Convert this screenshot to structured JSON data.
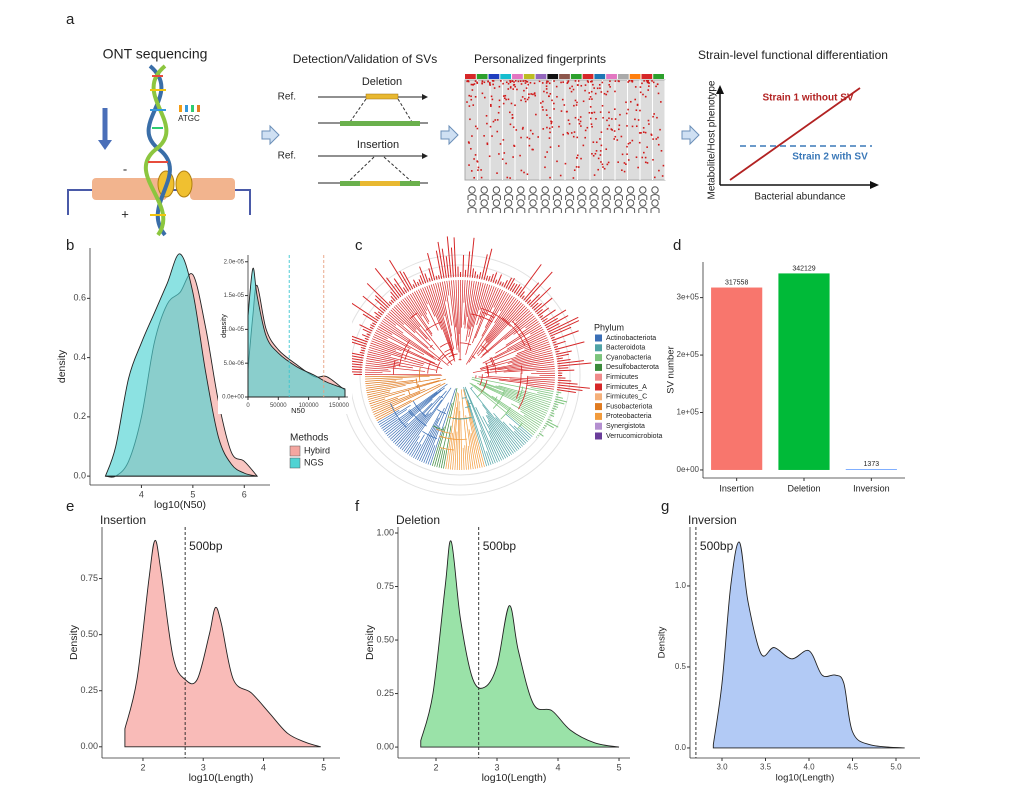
{
  "figure": {
    "panel_labels": [
      "a",
      "b",
      "c",
      "d",
      "e",
      "f",
      "g"
    ],
    "ont_title": "ONT sequencing",
    "atgc": "ATGC",
    "minus": "-",
    "plus": "+",
    "sv_title": "Detection/Validation of SVs",
    "deletion": "Deletion",
    "insertion": "Insertion",
    "ref": "Ref.",
    "fp_title": "Personalized fingerprints",
    "strain_title": "Strain-level functional differentiation",
    "y_axis": "Metabolite/Host phenotype",
    "x_axis": "Bacterial abundance",
    "strain1": "Strain 1 without SV",
    "strain2": "Strain 2 with SV",
    "phylum_title": "Phylum",
    "phyla": [
      {
        "name": "Actinobacteriota",
        "color": "#3b6fb6"
      },
      {
        "name": "Bacteroidota",
        "color": "#4fa3a5"
      },
      {
        "name": "Cyanobacteria",
        "color": "#7cc47c"
      },
      {
        "name": "Desulfobacterota",
        "color": "#3b8a3b"
      },
      {
        "name": "Firmicutes",
        "color": "#f08a8a"
      },
      {
        "name": "Firmicutes_A",
        "color": "#d62728"
      },
      {
        "name": "Firmicutes_C",
        "color": "#f5b07a"
      },
      {
        "name": "Fusobacteriota",
        "color": "#e07b20"
      },
      {
        "name": "Proteobacteria",
        "color": "#f29b3c"
      },
      {
        "name": "Synergistota",
        "color": "#b48fd0"
      },
      {
        "name": "Verrucomicrobiota",
        "color": "#6a3d9a"
      }
    ]
  },
  "chart_data": [
    {
      "type": "area",
      "xlabel": "log10(N50)",
      "ylabel": "density",
      "legend_title": "Methods",
      "xlim": [
        3.0,
        6.5
      ],
      "ylim": [
        -0.03,
        0.77
      ],
      "xticks": [
        4,
        5,
        6
      ],
      "yticks": [
        {
          "value": 0,
          "label": "0.0"
        },
        {
          "value": 0.2,
          "label": "0.2"
        },
        {
          "value": 0.4,
          "label": "0.4"
        },
        {
          "value": 0.6,
          "label": "0.6"
        }
      ],
      "x": [
        3.3,
        3.5,
        3.75,
        4.0,
        4.25,
        4.5,
        4.75,
        5.0,
        5.25,
        5.5,
        5.75,
        6.0,
        6.25
      ],
      "series": [
        {
          "name": "Hybird",
          "color": "#f4a6a0",
          "values": [
            0,
            0,
            0.05,
            0.2,
            0.45,
            0.58,
            0.62,
            0.68,
            0.5,
            0.25,
            0.08,
            0.05,
            0
          ]
        },
        {
          "name": "NGS",
          "color": "#4fd3d3",
          "values": [
            0,
            0.1,
            0.33,
            0.45,
            0.55,
            0.65,
            0.75,
            0.62,
            0.35,
            0.13,
            0.04,
            0.01,
            0
          ]
        }
      ]
    },
    {
      "type": "area",
      "xlabel": "N50",
      "ylabel": "density",
      "xlim": [
        0,
        165000
      ],
      "ylim": [
        0,
        2.1e-05
      ],
      "xticks": [
        0,
        50000,
        100000,
        150000
      ],
      "yticks": [
        {
          "value": 0,
          "label": "0.0e+00"
        },
        {
          "value": 5e-06,
          "label": "5.0e-06"
        },
        {
          "value": 1e-05,
          "label": "1.0e-05"
        },
        {
          "value": 1.5e-05,
          "label": "1.5e-05"
        },
        {
          "value": 2e-05,
          "label": "2.0e-05"
        }
      ],
      "x": [
        0,
        8000,
        15000,
        30000,
        50000,
        80000,
        110000,
        130000,
        160000
      ],
      "series": [
        {
          "name": "Hybird",
          "color": "#f4a6a0",
          "values": [
            4e-06,
            1.2e-05,
            1.65e-05,
            1e-05,
            7e-06,
            4.8e-06,
            3e-06,
            3e-06,
            1e-06
          ]
        },
        {
          "name": "NGS",
          "color": "#4fd3d3",
          "values": [
            1.2e-05,
            1.9e-05,
            1.5e-05,
            9e-06,
            6.5e-06,
            4.5e-06,
            3.2e-06,
            2.2e-06,
            1.2e-06
          ]
        }
      ],
      "vlines": [
        {
          "value": 68000,
          "color": "#3cc6d0"
        },
        {
          "value": 125000,
          "color": "#e8a080"
        }
      ]
    },
    {
      "type": "bar",
      "ylabel": "SV number",
      "categories": [
        "Insertion",
        "Deletion",
        "Inversion"
      ],
      "values": [
        317558,
        342129,
        1373
      ],
      "colors": [
        "#f8766d",
        "#00ba38",
        "#619cff"
      ],
      "ylim": [
        -14000,
        362000
      ],
      "yticks": [
        {
          "value": 0,
          "label": "0e+00"
        },
        {
          "value": 100000,
          "label": "1e+05"
        },
        {
          "value": 200000,
          "label": "2e+05"
        },
        {
          "value": 300000,
          "label": "3e+05"
        }
      ]
    },
    {
      "type": "area",
      "title": "Insertion",
      "xlabel": "log10(Length)",
      "ylabel": "Density",
      "color": "#f8b4b0",
      "xlim": [
        1.32,
        5.27
      ],
      "ylim": [
        -0.05,
        0.98
      ],
      "xticks": [
        2,
        3,
        4,
        5
      ],
      "yticks": [
        {
          "value": 0,
          "label": "0.00"
        },
        {
          "value": 0.25,
          "label": "0.25"
        },
        {
          "value": 0.5,
          "label": "0.50"
        },
        {
          "value": 0.75,
          "label": "0.75"
        }
      ],
      "x": [
        1.7,
        1.9,
        2.1,
        2.2,
        2.3,
        2.5,
        2.7,
        2.9,
        3.1,
        3.2,
        3.3,
        3.5,
        3.8,
        4.1,
        4.4,
        4.7,
        4.95
      ],
      "values": [
        0.08,
        0.3,
        0.75,
        0.92,
        0.78,
        0.4,
        0.3,
        0.3,
        0.5,
        0.62,
        0.55,
        0.3,
        0.24,
        0.15,
        0.06,
        0.02,
        0
      ],
      "vlines": [
        {
          "value": 2.7,
          "label": "500bp"
        }
      ]
    },
    {
      "type": "area",
      "title": "Deletion",
      "xlabel": "log10(Length)",
      "ylabel": "Density",
      "color": "#8fdf9f",
      "xlim": [
        1.377,
        5.18
      ],
      "ylim": [
        -0.051,
        1.028
      ],
      "xticks": [
        2,
        3,
        4,
        5
      ],
      "yticks": [
        {
          "value": 0,
          "label": "0.00"
        },
        {
          "value": 0.25,
          "label": "0.25"
        },
        {
          "value": 0.5,
          "label": "0.50"
        },
        {
          "value": 0.75,
          "label": "0.75"
        },
        {
          "value": 1,
          "label": "1.00"
        }
      ],
      "x": [
        1.75,
        1.95,
        2.15,
        2.25,
        2.4,
        2.6,
        2.8,
        3.0,
        3.2,
        3.35,
        3.6,
        3.9,
        4.2,
        4.6,
        5.0
      ],
      "values": [
        0.03,
        0.25,
        0.75,
        0.96,
        0.6,
        0.32,
        0.28,
        0.38,
        0.66,
        0.45,
        0.2,
        0.17,
        0.08,
        0.02,
        0
      ],
      "vlines": [
        {
          "value": 2.7,
          "label": "500bp"
        }
      ]
    },
    {
      "type": "area",
      "title": "Inversion",
      "xlabel": "log10(Length)",
      "ylabel": "Density",
      "color": "#aac4f4",
      "xlim": [
        2.632,
        5.276
      ],
      "ylim": [
        -0.062,
        1.364
      ],
      "xticks": [
        {
          "value": 3,
          "label": "3.0"
        },
        3.5,
        {
          "value": 4,
          "label": "4.0"
        },
        4.5,
        {
          "value": 5,
          "label": "5.0"
        }
      ],
      "yticks": [
        {
          "value": 0,
          "label": "0.0"
        },
        0.5,
        {
          "value": 1,
          "label": "1.0"
        }
      ],
      "x": [
        2.9,
        3.0,
        3.1,
        3.2,
        3.3,
        3.45,
        3.6,
        3.8,
        4.0,
        4.15,
        4.3,
        4.4,
        4.5,
        4.7,
        5.1
      ],
      "values": [
        0.02,
        0.4,
        1.0,
        1.27,
        0.9,
        0.58,
        0.62,
        0.55,
        0.6,
        0.45,
        0.45,
        0.4,
        0.1,
        0.02,
        0
      ],
      "vlines": [
        {
          "value": 2.7,
          "label": "500bp"
        }
      ]
    }
  ]
}
